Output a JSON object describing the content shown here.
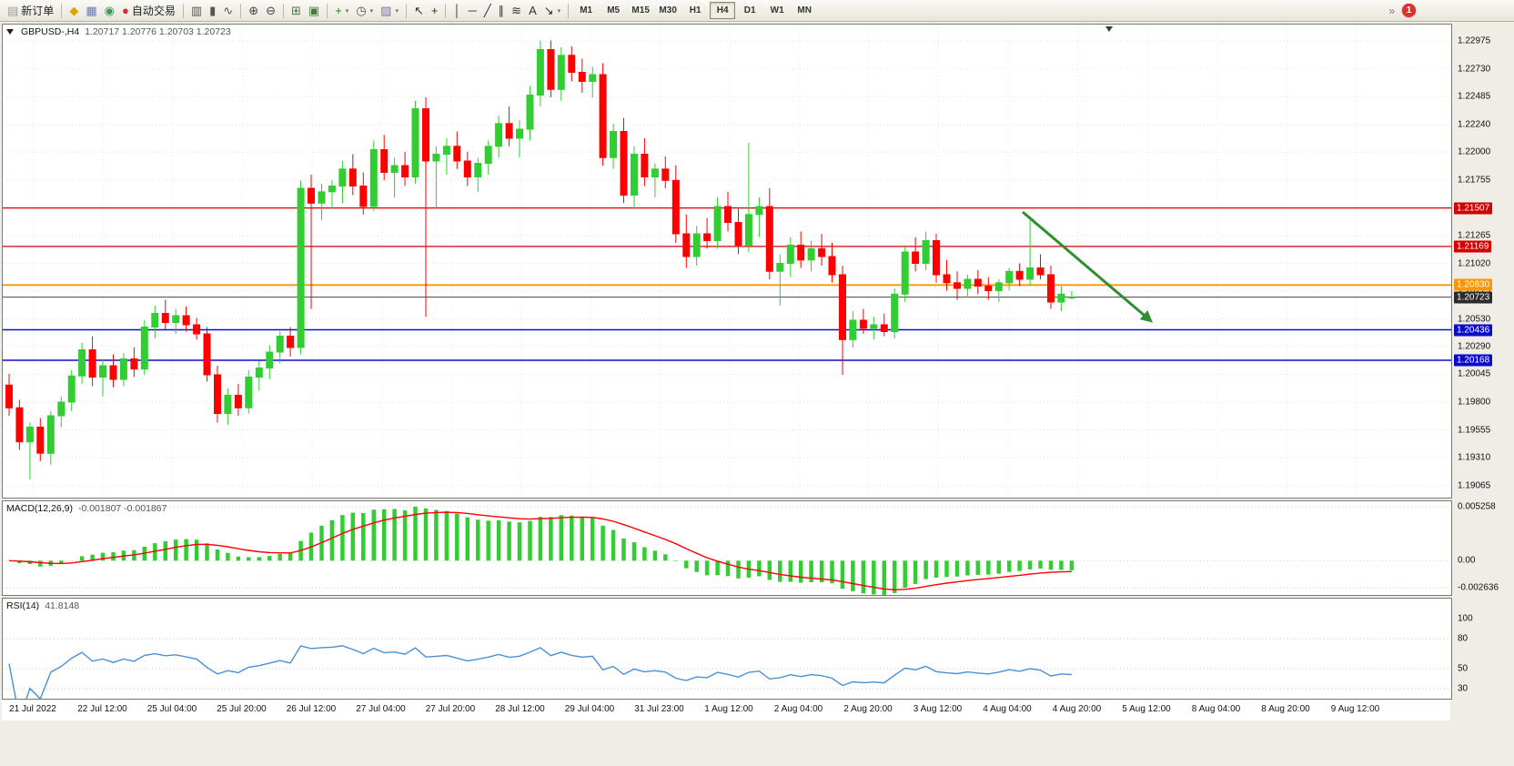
{
  "toolbar": {
    "badge_count": "1",
    "timeframes": [
      "M1",
      "M5",
      "M15",
      "M30",
      "H1",
      "H4",
      "D1",
      "W1",
      "MN"
    ],
    "active_timeframe": "H4",
    "overflow_glyph": "»",
    "items": [
      {
        "name": "new-order-button",
        "glyph": "▤",
        "color": "#9a9a9a",
        "label": "新订单"
      },
      {
        "type": "sep"
      },
      {
        "name": "metaeditor-button",
        "glyph": "◆",
        "color": "#d8a800"
      },
      {
        "name": "market-watch-button",
        "glyph": "▦",
        "color": "#5b7fb9"
      },
      {
        "name": "strategy-tester-button",
        "glyph": "◉",
        "color": "#3a9a5c"
      },
      {
        "name": "autotrading-button",
        "glyph": "●",
        "color": "#d33030",
        "label": "自动交易"
      },
      {
        "type": "sep"
      },
      {
        "name": "bar-chart-button",
        "glyph": "▥",
        "color": "#555555"
      },
      {
        "name": "candlestick-chart-button",
        "glyph": "▮",
        "color": "#555555"
      },
      {
        "name": "line-chart-button",
        "glyph": "∿",
        "color": "#555555"
      },
      {
        "type": "sep"
      },
      {
        "name": "zoom-in-button",
        "glyph": "⊕",
        "color": "#444444"
      },
      {
        "name": "zoom-out-button",
        "glyph": "⊖",
        "color": "#444444"
      },
      {
        "type": "sep"
      },
      {
        "name": "tile-windows-button",
        "glyph": "⊞",
        "color": "#3f7f3f"
      },
      {
        "name": "window-layout-button",
        "glyph": "▣",
        "color": "#3f7f3f"
      },
      {
        "type": "sep"
      },
      {
        "name": "indicators-button",
        "glyph": "+",
        "color": "#188618",
        "dropdown": true
      },
      {
        "name": "periodicity-button",
        "glyph": "◷",
        "color": "#555555",
        "dropdown": true
      },
      {
        "name": "templates-button",
        "glyph": "▨",
        "color": "#7d6fa0",
        "dropdown": true
      },
      {
        "type": "sep"
      },
      {
        "name": "cursor-button",
        "glyph": "↖",
        "color": "#333333"
      },
      {
        "name": "crosshair-button",
        "glyph": "+",
        "color": "#333333"
      },
      {
        "type": "sep"
      },
      {
        "name": "vertical-line-button",
        "glyph": "│",
        "color": "#333333"
      },
      {
        "name": "horizontal-line-button",
        "glyph": "─",
        "color": "#333333"
      },
      {
        "name": "trendline-button",
        "glyph": "╱",
        "color": "#333333"
      },
      {
        "name": "channel-button",
        "glyph": "∥",
        "color": "#333333"
      },
      {
        "name": "fibonacci-button",
        "glyph": "≋",
        "color": "#333333"
      },
      {
        "name": "text-button",
        "glyph": "A",
        "color": "#333333"
      },
      {
        "name": "arrows-button",
        "glyph": "↘",
        "color": "#333333",
        "dropdown": true
      },
      {
        "type": "sep"
      }
    ]
  },
  "chart": {
    "symbol_period": "GBPUSD-,H4",
    "ohlc_text": "1.20717 1.20776 1.20703 1.20723",
    "price_axis_labels": [
      "1.22975",
      "1.22730",
      "1.22485",
      "1.22240",
      "1.22000",
      "1.21755",
      "1.21510",
      "1.21265",
      "1.21020",
      "1.20775",
      "1.20530",
      "1.20290",
      "1.20045",
      "1.19800",
      "1.19555",
      "1.19310",
      "1.19065"
    ],
    "price_levels": [
      {
        "price": "1.21507",
        "line_color": "#d40000",
        "tag_color": "#d40000",
        "width": 1.2
      },
      {
        "price": "1.21169",
        "line_color": "#d40000",
        "tag_color": "#d40000",
        "width": 1.2
      },
      {
        "price": "1.20830",
        "line_color": "#ff9500",
        "tag_color": "#ff9500",
        "width": 1.8
      },
      {
        "price": "1.20723",
        "line_color": "#5a5a5a",
        "tag_color": "#2b2b2b",
        "width": 1.1
      },
      {
        "price": "1.20436",
        "line_color": "#0b0bd0",
        "tag_color": "#0b0bd0",
        "width": 1.4
      },
      {
        "price": "1.20168",
        "line_color": "#0b0bd0",
        "tag_color": "#0b0bd0",
        "width": 1.4
      }
    ],
    "time_axis_labels": [
      "21 Jul 2022",
      "22 Jul 12:00",
      "25 Jul 04:00",
      "25 Jul 20:00",
      "26 Jul 12:00",
      "27 Jul 04:00",
      "27 Jul 20:00",
      "28 Jul 12:00",
      "29 Jul 04:00",
      "31 Jul 23:00",
      "1 Aug 12:00",
      "2 Aug 04:00",
      "2 Aug 20:00",
      "3 Aug 12:00",
      "4 Aug 04:00",
      "4 Aug 20:00",
      "5 Aug 12:00",
      "8 Aug 04:00",
      "8 Aug 20:00",
      "9 Aug 12:00"
    ]
  },
  "chart_data": {
    "type": "candlestick",
    "symbol": "GBPUSD",
    "period": "H4",
    "ylim": [
      1.1896,
      1.2312
    ],
    "colors": {
      "up": "#32CD32",
      "down": "#ff0000",
      "grid": "#e2e2e2"
    },
    "ohlc": [
      [
        1.1995,
        1.2005,
        1.1968,
        1.1975
      ],
      [
        1.1975,
        1.1982,
        1.1938,
        1.1945
      ],
      [
        1.1945,
        1.1962,
        1.1912,
        1.1958
      ],
      [
        1.1958,
        1.1966,
        1.1928,
        1.1935
      ],
      [
        1.1935,
        1.1972,
        1.1925,
        1.1968
      ],
      [
        1.1968,
        1.1985,
        1.1958,
        1.198
      ],
      [
        1.198,
        1.2008,
        1.1972,
        1.2003
      ],
      [
        1.2003,
        1.2032,
        1.1996,
        1.2026
      ],
      [
        1.2026,
        1.2038,
        1.1994,
        1.2002
      ],
      [
        1.2002,
        1.2018,
        1.1985,
        1.2012
      ],
      [
        1.2012,
        1.2022,
        1.1993,
        1.2
      ],
      [
        1.2,
        1.2023,
        1.1994,
        1.2018
      ],
      [
        1.2018,
        1.2028,
        1.2002,
        1.2009
      ],
      [
        1.2009,
        1.2052,
        1.2004,
        1.2046
      ],
      [
        1.2046,
        1.2065,
        1.2036,
        1.2058
      ],
      [
        1.2058,
        1.207,
        1.2044,
        1.205
      ],
      [
        1.205,
        1.2062,
        1.204,
        1.2056
      ],
      [
        1.2056,
        1.2064,
        1.2042,
        1.2048
      ],
      [
        1.2048,
        1.2054,
        1.2035,
        1.204
      ],
      [
        1.204,
        1.2046,
        1.1998,
        1.2004
      ],
      [
        1.2004,
        1.2012,
        1.1962,
        1.197
      ],
      [
        1.197,
        1.1992,
        1.196,
        1.1986
      ],
      [
        1.1986,
        1.1996,
        1.1968,
        1.1975
      ],
      [
        1.1975,
        1.2008,
        1.197,
        1.2002
      ],
      [
        1.2002,
        1.2016,
        1.199,
        1.201
      ],
      [
        1.201,
        1.203,
        1.2,
        1.2024
      ],
      [
        1.2024,
        1.2042,
        1.2014,
        1.2038
      ],
      [
        1.2038,
        1.2046,
        1.202,
        1.2028
      ],
      [
        1.2028,
        1.2175,
        1.2022,
        1.2168
      ],
      [
        1.2168,
        1.218,
        1.2062,
        1.2155
      ],
      [
        1.2155,
        1.2172,
        1.214,
        1.2165
      ],
      [
        1.2165,
        1.2175,
        1.215,
        1.217
      ],
      [
        1.217,
        1.2192,
        1.2155,
        1.2185
      ],
      [
        1.2185,
        1.2198,
        1.2162,
        1.217
      ],
      [
        1.217,
        1.2182,
        1.2145,
        1.2152
      ],
      [
        1.2152,
        1.221,
        1.2148,
        1.2202
      ],
      [
        1.2202,
        1.2215,
        1.2175,
        1.2182
      ],
      [
        1.2182,
        1.2195,
        1.216,
        1.2188
      ],
      [
        1.2188,
        1.22,
        1.217,
        1.2178
      ],
      [
        1.2178,
        1.2245,
        1.2172,
        1.2238
      ],
      [
        1.2238,
        1.2248,
        1.2055,
        1.2192
      ],
      [
        1.2192,
        1.2205,
        1.215,
        1.2198
      ],
      [
        1.2198,
        1.2212,
        1.218,
        1.2205
      ],
      [
        1.2205,
        1.2218,
        1.2185,
        1.2192
      ],
      [
        1.2192,
        1.22,
        1.217,
        1.2178
      ],
      [
        1.2178,
        1.2195,
        1.2165,
        1.219
      ],
      [
        1.219,
        1.221,
        1.218,
        1.2205
      ],
      [
        1.2205,
        1.2232,
        1.2195,
        1.2225
      ],
      [
        1.2225,
        1.224,
        1.2205,
        1.2212
      ],
      [
        1.2212,
        1.2228,
        1.2195,
        1.222
      ],
      [
        1.222,
        1.2258,
        1.221,
        1.225
      ],
      [
        1.225,
        1.2298,
        1.224,
        1.229
      ],
      [
        1.229,
        1.2298,
        1.2248,
        1.2255
      ],
      [
        1.2255,
        1.2292,
        1.2245,
        1.2285
      ],
      [
        1.2285,
        1.2293,
        1.2262,
        1.227
      ],
      [
        1.227,
        1.2282,
        1.2252,
        1.2262
      ],
      [
        1.2262,
        1.2275,
        1.2248,
        1.2268
      ],
      [
        1.2268,
        1.2278,
        1.2188,
        1.2195
      ],
      [
        1.2195,
        1.2225,
        1.2185,
        1.2218
      ],
      [
        1.2218,
        1.223,
        1.2155,
        1.2162
      ],
      [
        1.2162,
        1.2205,
        1.215,
        1.2198
      ],
      [
        1.2198,
        1.2212,
        1.217,
        1.2178
      ],
      [
        1.2178,
        1.219,
        1.216,
        1.2185
      ],
      [
        1.2185,
        1.2196,
        1.2168,
        1.2175
      ],
      [
        1.2175,
        1.2188,
        1.212,
        1.2128
      ],
      [
        1.2128,
        1.2145,
        1.2098,
        1.2108
      ],
      [
        1.2108,
        1.2135,
        1.21,
        1.2128
      ],
      [
        1.2128,
        1.2142,
        1.2115,
        1.2122
      ],
      [
        1.2122,
        1.216,
        1.2115,
        1.2152
      ],
      [
        1.2152,
        1.2165,
        1.213,
        1.2138
      ],
      [
        1.2138,
        1.215,
        1.211,
        1.2118
      ],
      [
        1.2118,
        1.2208,
        1.2112,
        1.2145
      ],
      [
        1.2145,
        1.216,
        1.2125,
        1.2152
      ],
      [
        1.2152,
        1.2168,
        1.2088,
        1.2095
      ],
      [
        1.2095,
        1.211,
        1.2065,
        1.2102
      ],
      [
        1.2102,
        1.2125,
        1.209,
        1.2118
      ],
      [
        1.2118,
        1.213,
        1.2098,
        1.2105
      ],
      [
        1.2105,
        1.2122,
        1.2095,
        1.2115
      ],
      [
        1.2115,
        1.2128,
        1.21,
        1.2108
      ],
      [
        1.2108,
        1.212,
        1.2085,
        1.2092
      ],
      [
        1.2092,
        1.21,
        1.2004,
        1.2035
      ],
      [
        1.2035,
        1.206,
        1.2028,
        1.2052
      ],
      [
        1.2052,
        1.2062,
        1.204,
        1.2045
      ],
      [
        1.2045,
        1.2055,
        1.2035,
        1.2048
      ],
      [
        1.2048,
        1.2058,
        1.2038,
        1.2042
      ],
      [
        1.2042,
        1.208,
        1.2036,
        1.2075
      ],
      [
        1.2075,
        1.2118,
        1.2068,
        1.2112
      ],
      [
        1.2112,
        1.2125,
        1.2095,
        1.2102
      ],
      [
        1.2102,
        1.213,
        1.2096,
        1.2122
      ],
      [
        1.2122,
        1.2128,
        1.2085,
        1.2092
      ],
      [
        1.2092,
        1.2105,
        1.2078,
        1.2085
      ],
      [
        1.2085,
        1.2095,
        1.207,
        1.208
      ],
      [
        1.208,
        1.2092,
        1.2072,
        1.2088
      ],
      [
        1.2088,
        1.2096,
        1.2075,
        1.2082
      ],
      [
        1.2082,
        1.209,
        1.207,
        1.2078
      ],
      [
        1.2078,
        1.2088,
        1.2068,
        1.2085
      ],
      [
        1.2085,
        1.2098,
        1.2078,
        1.2095
      ],
      [
        1.2095,
        1.2102,
        1.2082,
        1.2088
      ],
      [
        1.2088,
        1.214,
        1.2082,
        1.2098
      ],
      [
        1.2098,
        1.211,
        1.2088,
        1.2092
      ],
      [
        1.2092,
        1.21,
        1.2062,
        1.2068
      ],
      [
        1.2068,
        1.2082,
        1.206,
        1.2075
      ],
      [
        1.20717,
        1.20776,
        1.20703,
        1.20723
      ]
    ],
    "annotations": [
      {
        "type": "arrow",
        "color": "#2f8f2f",
        "from_x": 0.704,
        "from_price": 1.2147,
        "to_x": 0.792,
        "to_price": 1.2052,
        "width": 3
      }
    ],
    "indicators": {
      "macd": {
        "label": "MACD(12,26,9)",
        "values_text": "-0.001807 -0.001867",
        "axis_max": "0.005258",
        "axis_zero": "0.00",
        "axis_min": "-0.002636",
        "hist_color": "#32CD32",
        "signal_color": "#ff0000"
      },
      "rsi": {
        "label": "RSI(14)",
        "value_text": "41.8148",
        "axis_labels": [
          "100",
          "80",
          "50",
          "30"
        ],
        "levels": [
          80,
          50,
          30
        ],
        "line_color": "#4a90d9"
      }
    }
  }
}
